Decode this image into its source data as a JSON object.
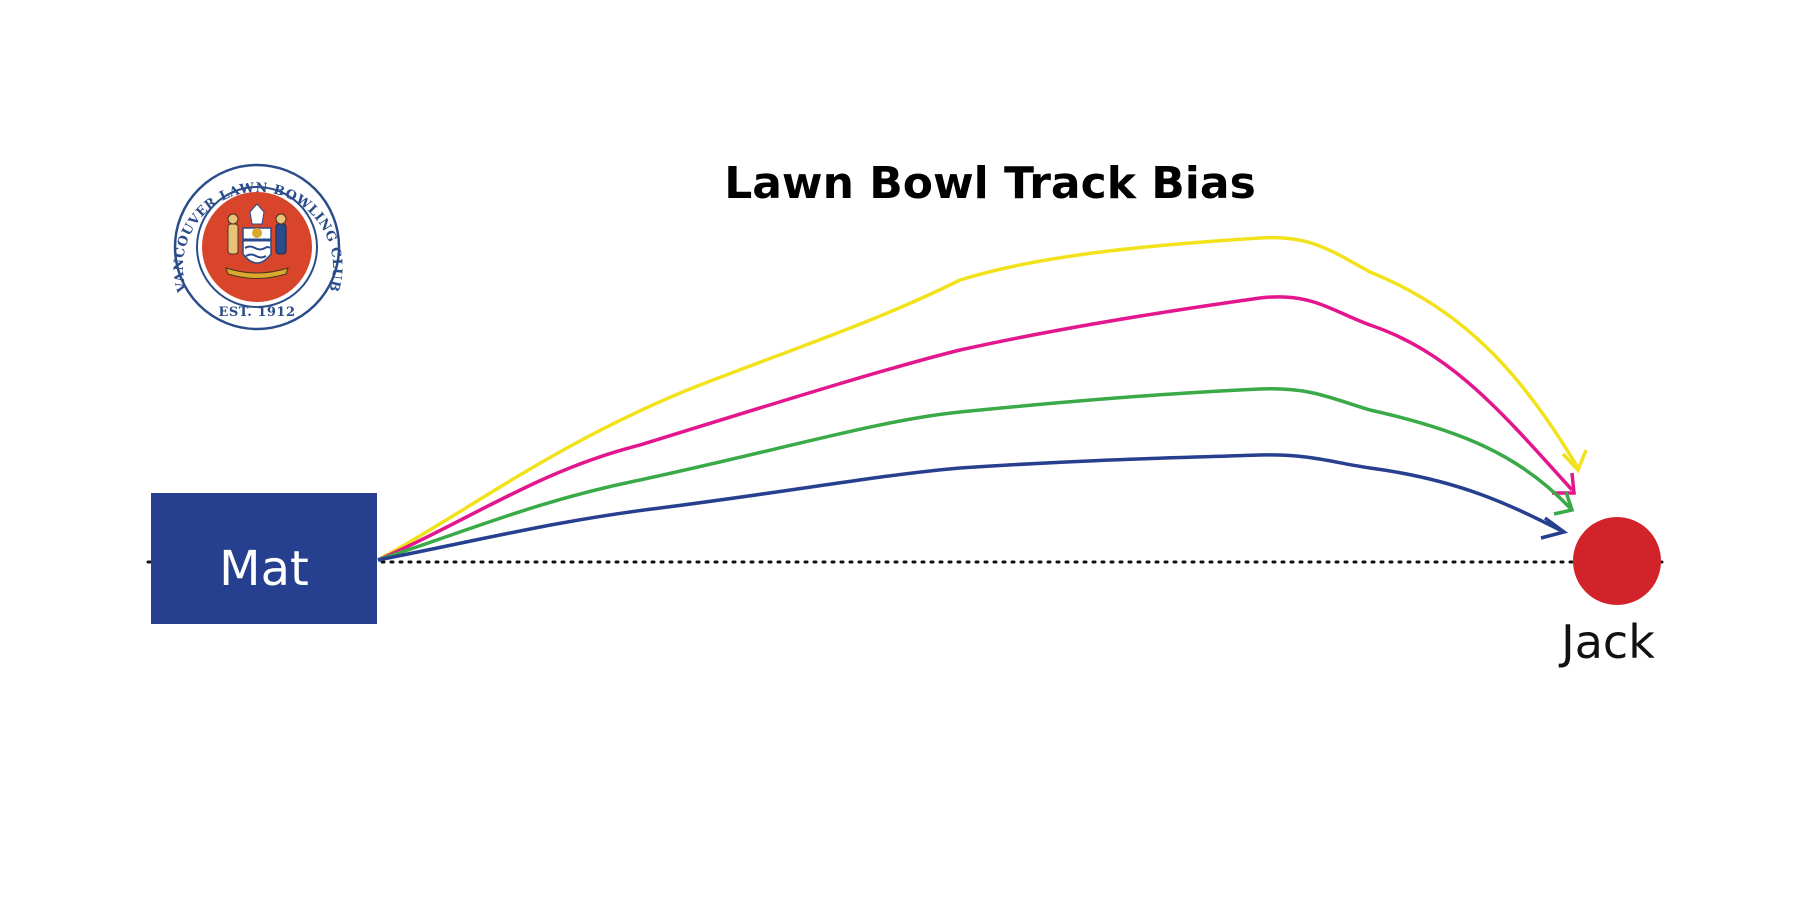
{
  "title": "Lawn Bowl Track Bias",
  "logo": {
    "text_arc": "VANCOUVER LAWN BOWLING CLUB",
    "text_bottom": "EST. 1912",
    "colors": {
      "ring": "#2b4c8a",
      "field": "#d8452b",
      "gold": "#d9a92e"
    }
  },
  "mat": {
    "label": "Mat",
    "color": "#263f8f"
  },
  "jack": {
    "label": "Jack",
    "color": "#d2232a"
  },
  "centre_line": {
    "style": "dotted",
    "color": "#111111"
  },
  "tracks": [
    {
      "color": "#f2e21b"
    },
    {
      "color": "#e4168e"
    },
    {
      "color": "#3aaa48"
    },
    {
      "color": "#263f8f"
    }
  ]
}
